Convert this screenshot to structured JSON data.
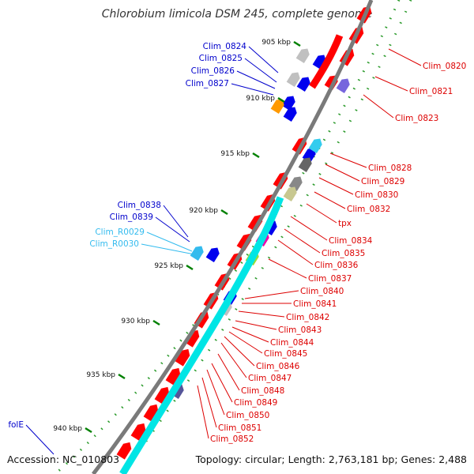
{
  "title": "Chlorobium limicola DSM 245, complete genome",
  "accession": "Accession: NC_010803",
  "summary": "Topology: circular; Length: 2,763,181 bp; Genes: 2,488",
  "colors": {
    "backbone": "#808080",
    "cds": "#ff0000",
    "highlight": "#0000ff",
    "rna_label": "#33bbee",
    "tick": "#008000",
    "ortholog_cyan": "#00e5e5",
    "label_red": "#dd0000",
    "label_blue": "#0000cc"
  },
  "axis_ticks": [
    {
      "label": "905 kbp"
    },
    {
      "label": "910 kbp"
    },
    {
      "label": "915 kbp"
    },
    {
      "label": "920 kbp"
    },
    {
      "label": "925 kbp"
    },
    {
      "label": "930 kbp"
    },
    {
      "label": "935 kbp"
    },
    {
      "label": "940 kbp"
    }
  ],
  "labels_left": [
    {
      "text": "Clim_0824",
      "color": "blue"
    },
    {
      "text": "Clim_0825",
      "color": "blue"
    },
    {
      "text": "Clim_0826",
      "color": "blue"
    },
    {
      "text": "Clim_0827",
      "color": "blue"
    },
    {
      "text": "Clim_0838",
      "color": "blue"
    },
    {
      "text": "Clim_0839",
      "color": "blue"
    },
    {
      "text": "Clim_R0029",
      "color": "cyan"
    },
    {
      "text": "Clim_R0030",
      "color": "cyan"
    },
    {
      "text": "folE",
      "color": "blue"
    }
  ],
  "labels_right": [
    {
      "text": "Clim_0820"
    },
    {
      "text": "Clim_0821"
    },
    {
      "text": "Clim_0823"
    },
    {
      "text": "Clim_0828"
    },
    {
      "text": "Clim_0829"
    },
    {
      "text": "Clim_0830"
    },
    {
      "text": "Clim_0832"
    },
    {
      "text": "tpx"
    },
    {
      "text": "Clim_0834"
    },
    {
      "text": "Clim_0835"
    },
    {
      "text": "Clim_0836"
    },
    {
      "text": "Clim_0837"
    },
    {
      "text": "Clim_0840"
    },
    {
      "text": "Clim_0841"
    },
    {
      "text": "Clim_0842"
    },
    {
      "text": "Clim_0843"
    },
    {
      "text": "Clim_0844"
    },
    {
      "text": "Clim_0845"
    },
    {
      "text": "Clim_0846"
    },
    {
      "text": "Clim_0847"
    },
    {
      "text": "Clim_0848"
    },
    {
      "text": "Clim_0849"
    },
    {
      "text": "Clim_0850"
    },
    {
      "text": "Clim_0851"
    },
    {
      "text": "Clim_0852"
    }
  ]
}
